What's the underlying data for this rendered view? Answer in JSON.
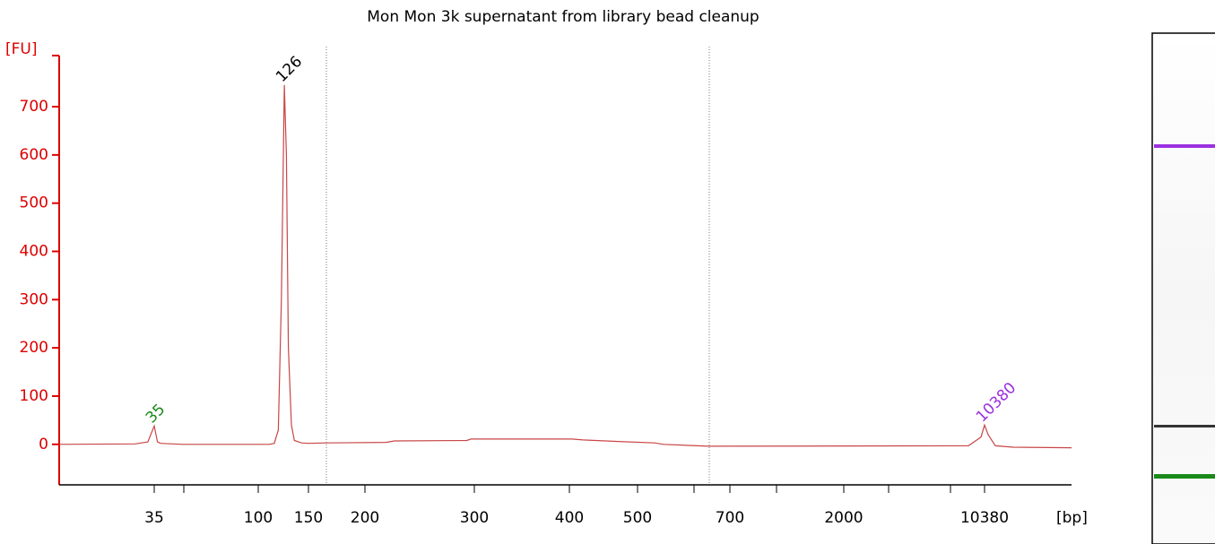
{
  "chart_data": {
    "type": "line",
    "title": "Mon Mon 3k supernatant from library bead cleanup",
    "x_label": "[bp]",
    "y_label": "[FU]",
    "series": [
      {
        "color": "#c84646",
        "x": [
          20,
          32,
          33,
          34,
          35,
          37,
          39,
          53,
          111,
          116,
          120,
          123,
          126,
          128,
          130,
          133,
          136,
          143,
          150,
          166,
          219,
          227,
          293,
          297,
          404,
          420,
          472,
          537,
          556,
          653,
          9419,
          10167,
          10380,
          10570,
          10952,
          11904,
          15000
        ],
        "values": [
          0,
          1,
          3,
          5,
          38,
          5,
          2,
          0,
          0,
          2,
          30,
          300,
          745,
          600,
          200,
          40,
          8,
          3,
          2,
          3,
          4,
          7,
          8,
          11,
          11,
          9,
          6,
          3,
          0,
          -4,
          -3,
          15,
          40,
          20,
          -3,
          -6,
          -7
        ]
      }
    ],
    "peaks": [
      {
        "x": 35,
        "y": 38,
        "color": "#1a8a1a"
      },
      {
        "x": 126,
        "y": 745,
        "color": "#000000"
      },
      {
        "x": 10380,
        "y": 40,
        "color": "#9b30e0"
      }
    ],
    "xlim": [
      20,
      15000
    ],
    "xticks": [
      35,
      100,
      150,
      200,
      300,
      400,
      500,
      700,
      2000,
      10380
    ],
    "ylim": [
      -84,
      806
    ],
    "yticks": [
      0,
      100,
      200,
      300,
      400,
      500,
      600,
      700
    ]
  }
}
